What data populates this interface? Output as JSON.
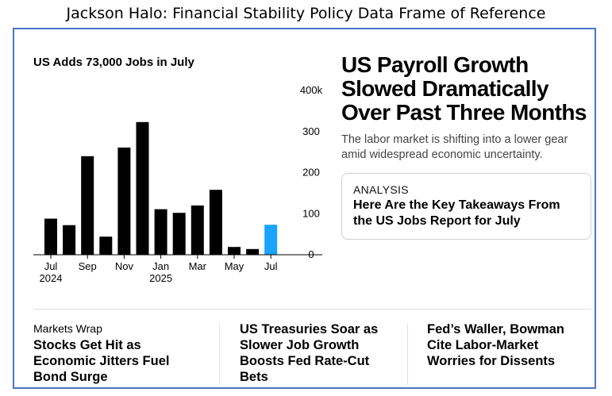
{
  "slide": {
    "title": "Jackson Halo: Financial Stability Policy Data Frame of Reference"
  },
  "chart_data": {
    "type": "bar",
    "title": "US Adds 73,000 Jobs in July",
    "categories": [
      "Jul 2024",
      "Aug 2024",
      "Sep 2024",
      "Oct 2024",
      "Nov 2024",
      "Dec 2024",
      "Jan 2025",
      "Feb 2025",
      "Mar 2025",
      "Apr 2025",
      "May 2025",
      "Jun 2025",
      "Jul 2025"
    ],
    "values": [
      88,
      72,
      240,
      44,
      261,
      323,
      111,
      102,
      120,
      158,
      19,
      14,
      73
    ],
    "highlight_index": 12,
    "bar_color": "#000000",
    "highlight_color": "#1aa3ff",
    "xtick_labels": [
      {
        "index": 0,
        "label": "Jul",
        "sublabel": "2024"
      },
      {
        "index": 2,
        "label": "Sep",
        "sublabel": ""
      },
      {
        "index": 4,
        "label": "Nov",
        "sublabel": ""
      },
      {
        "index": 6,
        "label": "Jan",
        "sublabel": "2025"
      },
      {
        "index": 8,
        "label": "Mar",
        "sublabel": ""
      },
      {
        "index": 10,
        "label": "May",
        "sublabel": ""
      },
      {
        "index": 12,
        "label": "Jul",
        "sublabel": ""
      }
    ],
    "yticks": [
      {
        "value": 0,
        "label": "0"
      },
      {
        "value": 100,
        "label": "100"
      },
      {
        "value": 200,
        "label": "200"
      },
      {
        "value": 300,
        "label": "300"
      },
      {
        "value": 400,
        "label": "400k"
      }
    ],
    "ylim": [
      0,
      430
    ],
    "xlabel": "",
    "ylabel": ""
  },
  "article": {
    "headline": "US Payroll Growth Slowed Dramatically Over Past Three Months",
    "dek": "The labor market is shifting into a lower gear amid widespread economic uncertainty.",
    "analysis_tag": "ANALYSIS",
    "analysis_headline": "Here Are the Key Takeaways From the US Jobs Report for July"
  },
  "stories": [
    {
      "kicker": "Markets Wrap",
      "headline": "Stocks Get Hit as Economic Jitters Fuel Bond Surge"
    },
    {
      "kicker": "",
      "headline": "US Treasuries Soar as Slower Job Growth Boosts Fed Rate-Cut Bets"
    },
    {
      "kicker": "",
      "headline": "Fed’s Waller, Bowman Cite Labor-Market Worries for Dissents"
    }
  ],
  "colors": {
    "frame_border": "#4a75c4",
    "accent": "#1aa3ff"
  }
}
